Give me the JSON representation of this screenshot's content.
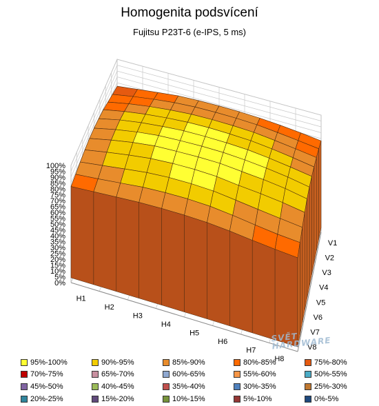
{
  "chart_data": {
    "type": "surface3d",
    "title": "Homogenita podsvícení",
    "subtitle": "Fujitsu P23T-6 (e-IPS, 5 ms)",
    "z_ticks": [
      "0%",
      "5%",
      "10%",
      "15%",
      "20%",
      "25%",
      "30%",
      "35%",
      "40%",
      "45%",
      "50%",
      "55%",
      "60%",
      "65%",
      "70%",
      "75%",
      "80%",
      "85%",
      "90%",
      "95%",
      "100%"
    ],
    "zlim": [
      0,
      100
    ],
    "h_labels": [
      "H1",
      "H2",
      "H3",
      "H4",
      "H5",
      "H6",
      "H7",
      "H8"
    ],
    "v_labels": [
      "V1",
      "V2",
      "V3",
      "V4",
      "V5",
      "V6",
      "V7",
      "V8"
    ],
    "grid": true,
    "legend_position": "bottom",
    "values_percent": [
      [
        77,
        80,
        84,
        86,
        87,
        86,
        84,
        82
      ],
      [
        80,
        85,
        89,
        92,
        93,
        91,
        87,
        84
      ],
      [
        83,
        88,
        92,
        95,
        97,
        95,
        91,
        86
      ],
      [
        84,
        90,
        94,
        97,
        98,
        97,
        93,
        87
      ],
      [
        84,
        90,
        94,
        97,
        99,
        97,
        93,
        87
      ],
      [
        83,
        89,
        93,
        96,
        97,
        94,
        90,
        85
      ],
      [
        81,
        86,
        90,
        93,
        95,
        92,
        86,
        82
      ],
      [
        78,
        83,
        86,
        89,
        90,
        88,
        84,
        80
      ]
    ],
    "legend": [
      {
        "label": "95%-100%",
        "color": "#ffff33"
      },
      {
        "label": "90%-95%",
        "color": "#f2cc00"
      },
      {
        "label": "85%-90%",
        "color": "#e88c2c"
      },
      {
        "label": "80%-85%",
        "color": "#ff6a00"
      },
      {
        "label": "75%-80%",
        "color": "#e55a10"
      },
      {
        "label": "70%-75%",
        "color": "#c00000"
      },
      {
        "label": "65%-70%",
        "color": "#c890a0"
      },
      {
        "label": "60%-65%",
        "color": "#8fa8d0"
      },
      {
        "label": "55%-60%",
        "color": "#f79646"
      },
      {
        "label": "50%-55%",
        "color": "#4bacc6"
      },
      {
        "label": "45%-50%",
        "color": "#8064a2"
      },
      {
        "label": "40%-45%",
        "color": "#9bbb59"
      },
      {
        "label": "35%-40%",
        "color": "#c0504d"
      },
      {
        "label": "30%-35%",
        "color": "#4f81bd"
      },
      {
        "label": "25%-30%",
        "color": "#c07830"
      },
      {
        "label": "20%-25%",
        "color": "#31859c"
      },
      {
        "label": "15%-20%",
        "color": "#604a7b"
      },
      {
        "label": "10%-15%",
        "color": "#77933c"
      },
      {
        "label": "5%-10%",
        "color": "#953735"
      },
      {
        "label": "0%-5%",
        "color": "#1f497d"
      }
    ]
  },
  "watermark": {
    "line1": "SVĚT",
    "line2": "HARDWARE"
  }
}
